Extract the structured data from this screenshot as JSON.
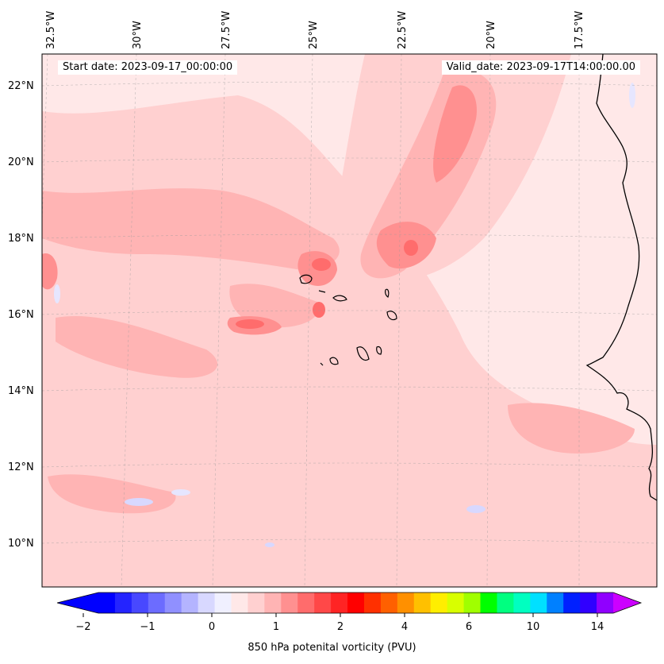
{
  "map": {
    "start_date_label": "Start date: 2023-09-17_00:00:00",
    "valid_date_label": "Valid_date: 2023-09-17T14:00:00.00",
    "longitude_labels": [
      "32.5°W",
      "30°W",
      "27.5°W",
      "25°W",
      "22.5°W",
      "20°W",
      "17.5°W"
    ],
    "latitude_labels": [
      "22°N",
      "20°N",
      "18°N",
      "16°N",
      "14°N",
      "12°N",
      "10°N"
    ],
    "variable": "850 hPa potential vorticity"
  },
  "colorbar": {
    "title": "850 hPa potenital vorticity (PVU)",
    "tick_labels": [
      "−2",
      "−1",
      "0",
      "1",
      "2",
      "4",
      "6",
      "10",
      "14"
    ],
    "colors": [
      "#0000ff",
      "#2424ff",
      "#4848ff",
      "#6c6cff",
      "#9090ff",
      "#b4b4ff",
      "#d8d8ff",
      "#f0f0ff",
      "#ffe8e8",
      "#ffd0d0",
      "#ffb4b4",
      "#ff9090",
      "#ff6c6c",
      "#ff4848",
      "#ff2424",
      "#ff0000",
      "#ff3000",
      "#ff6000",
      "#ff9000",
      "#ffc000",
      "#ffee00",
      "#d8ff00",
      "#a0ff00",
      "#00ff00",
      "#00ff80",
      "#00ffc0",
      "#00e0ff",
      "#0080ff",
      "#0020ff",
      "#3000ff",
      "#9000ff"
    ],
    "extend_low_color": "#0000ff",
    "extend_high_color": "#cc00ff"
  },
  "colors": {
    "background_field": "#ffe8e8",
    "light_pink": "#ffd0d0",
    "medium_pink": "#ffb4b4",
    "strong_pink": "#ff9090",
    "deep_red": "#ff6c6c",
    "negative_blue": "#e6e6ff",
    "coastline": "#000000"
  }
}
